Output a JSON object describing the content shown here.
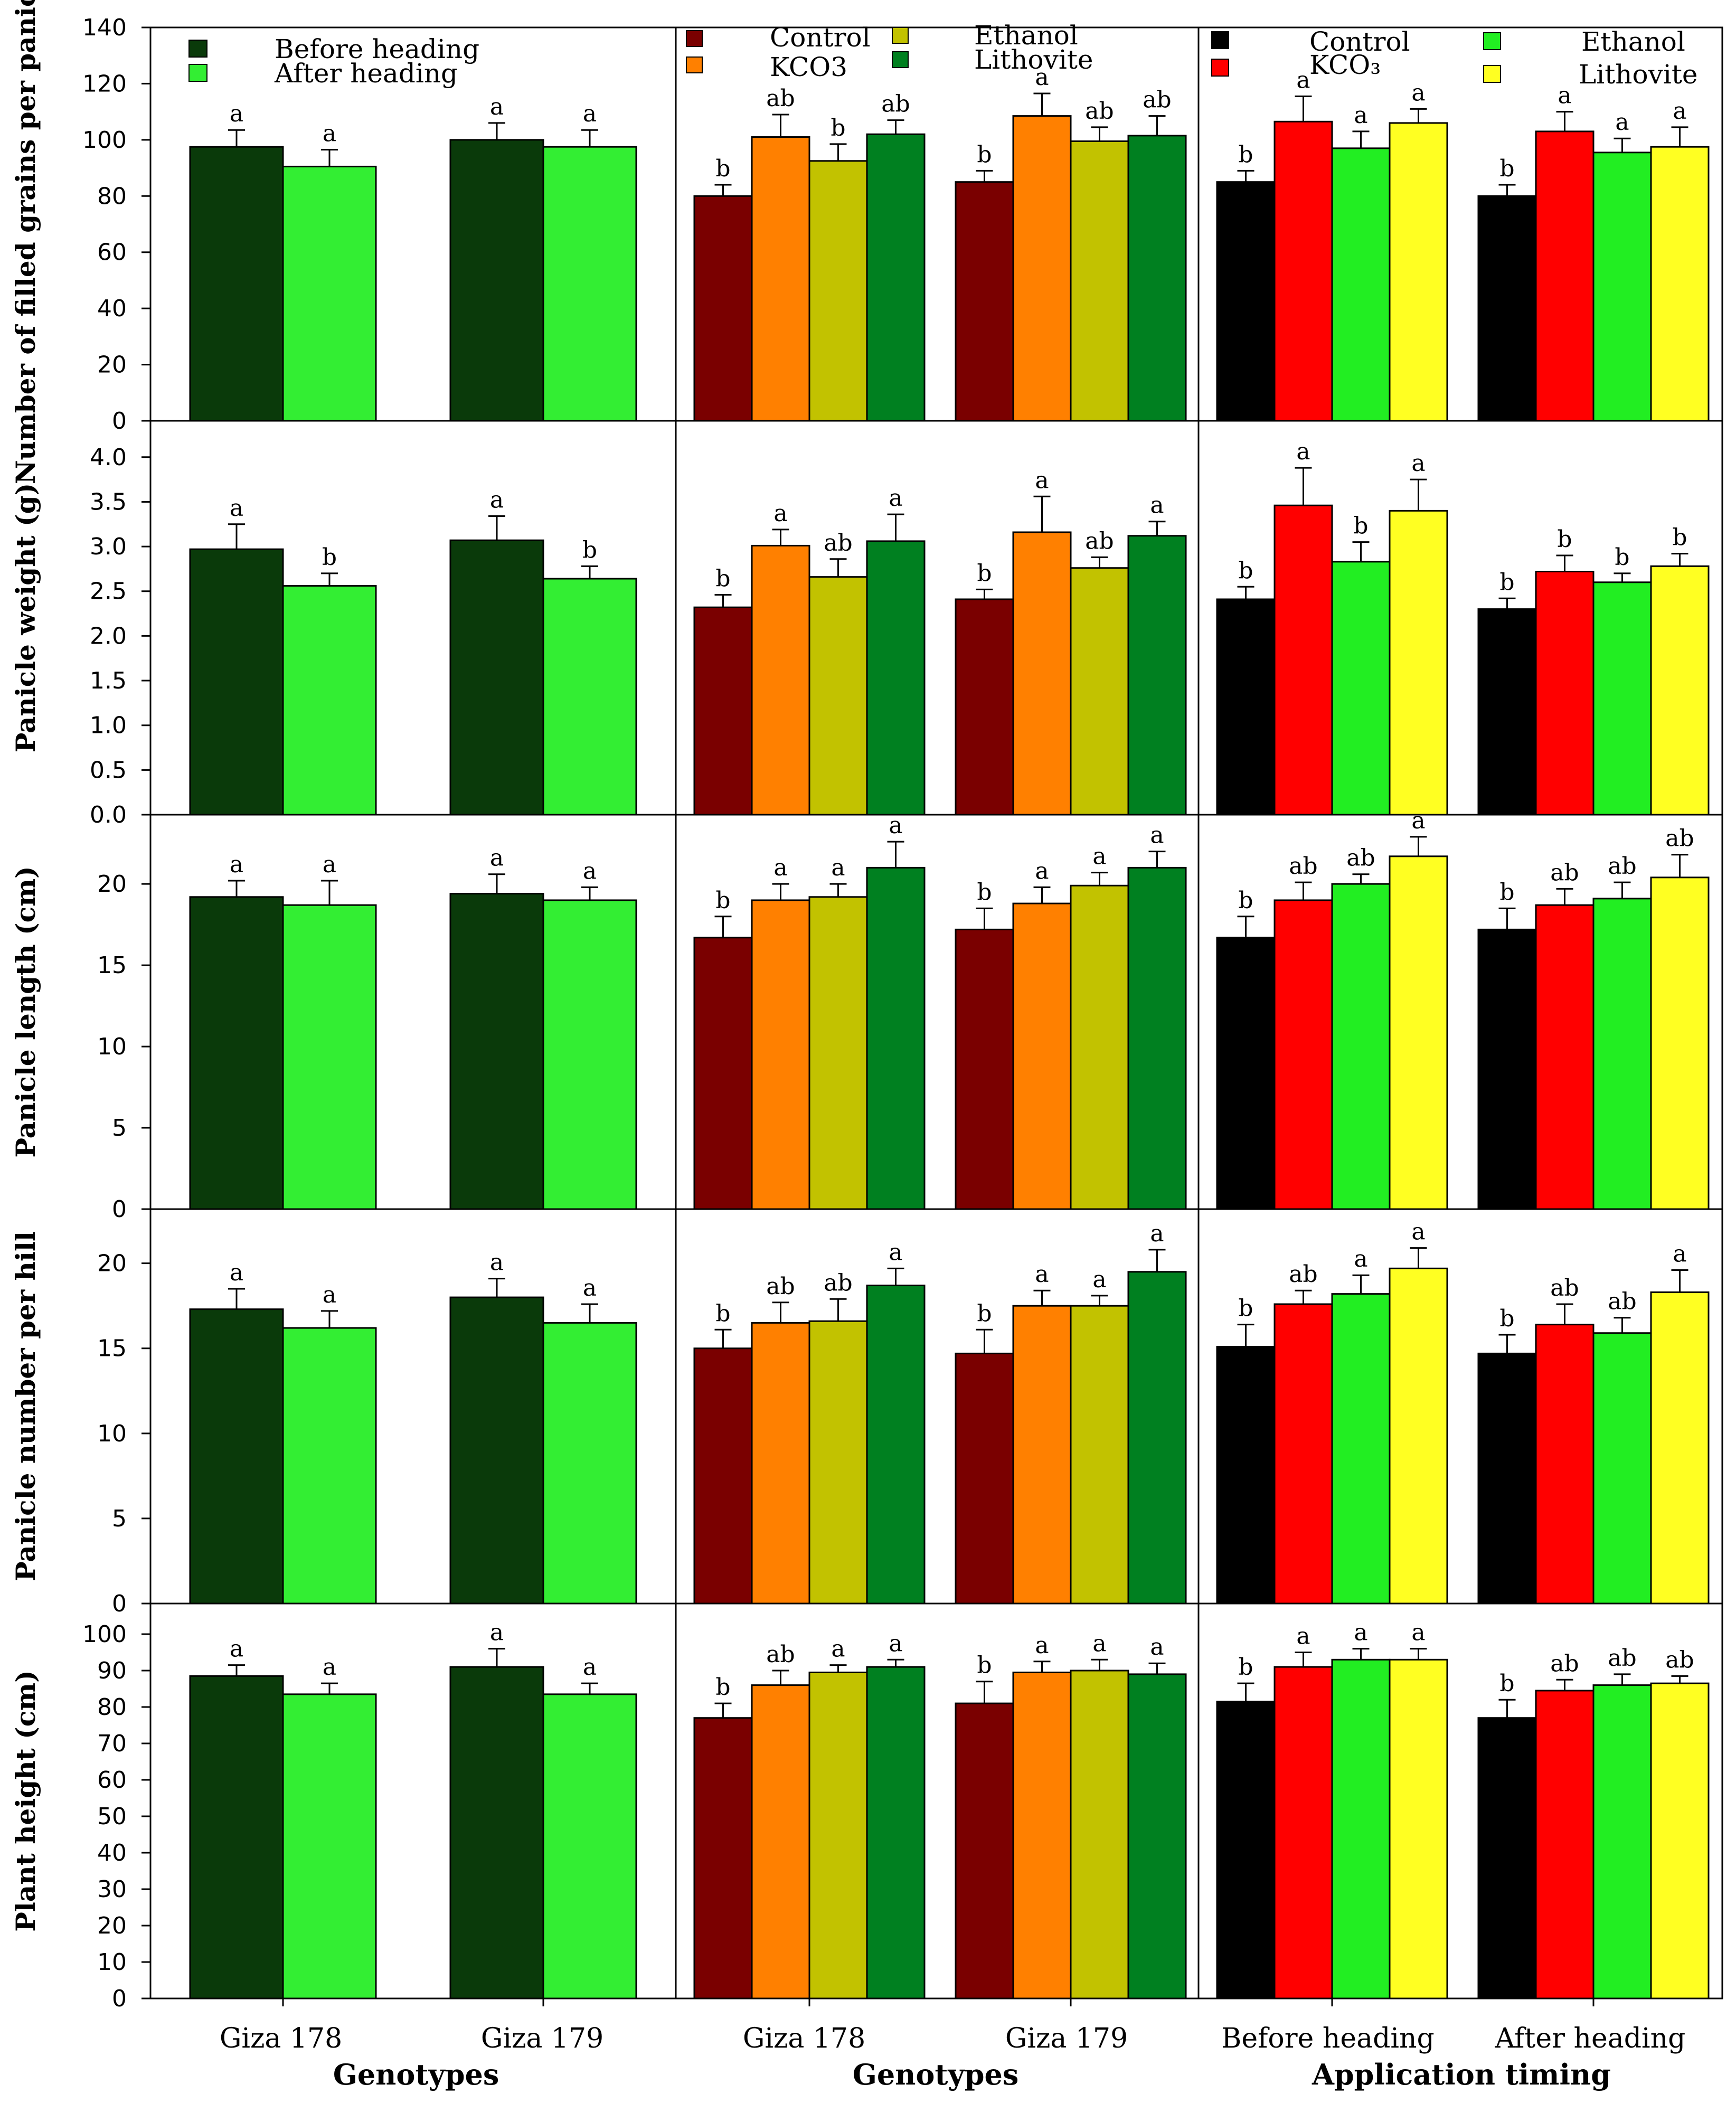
{
  "chart_data": {
    "type": "bar",
    "colors": {
      "before": "#0a3a0a",
      "after": "#33ee33",
      "control_g": "#7a0000",
      "kco3_g": "#ff8000",
      "ethanol_g": "#c2c200",
      "lithovite_g": "#008020",
      "control_t": "#000000",
      "kco3_t": "#ff0000",
      "ethanol_t": "#22ee22",
      "lithovite_t": "#ffff22"
    },
    "rows": [
      {
        "ylabel": "Number of filled grains per panicle",
        "ylim": [
          0,
          140
        ],
        "ticks": [
          "0",
          "20",
          "40",
          "60",
          "80",
          "100",
          "120",
          "140"
        ],
        "tick_values": [
          0,
          20,
          40,
          60,
          80,
          100,
          120,
          140
        ],
        "panels": [
          {
            "groups": [
              {
                "values": [
                  97.5,
                  90.5
                ],
                "errors": [
                  6,
                  6
                ],
                "letters": [
                  "a",
                  "a"
                ]
              },
              {
                "values": [
                  100,
                  97.5
                ],
                "errors": [
                  6,
                  6
                ],
                "letters": [
                  "a",
                  "a"
                ]
              }
            ]
          },
          {
            "groups": [
              {
                "values": [
                  80,
                  101,
                  92.5,
                  102
                ],
                "errors": [
                  4,
                  8,
                  6,
                  5
                ],
                "letters": [
                  "b",
                  "ab",
                  "b",
                  "ab"
                ]
              },
              {
                "values": [
                  85,
                  108.5,
                  99.5,
                  101.5
                ],
                "errors": [
                  4,
                  8,
                  5,
                  7
                ],
                "letters": [
                  "b",
                  "a",
                  "ab",
                  "ab"
                ]
              }
            ]
          },
          {
            "groups": [
              {
                "values": [
                  85,
                  106.5,
                  97,
                  106
                ],
                "errors": [
                  4,
                  9,
                  6,
                  5
                ],
                "letters": [
                  "b",
                  "a",
                  "a",
                  "a"
                ]
              },
              {
                "values": [
                  80,
                  103,
                  95.5,
                  97.5
                ],
                "errors": [
                  4,
                  7,
                  5,
                  7
                ],
                "letters": [
                  "b",
                  "a",
                  "a",
                  "a"
                ]
              }
            ]
          }
        ]
      },
      {
        "ylabel": "Panicle weight (g)",
        "ylim": [
          0,
          4.3
        ],
        "ticks": [
          "0.0",
          "0.5",
          "1.0",
          "1.5",
          "2.0",
          "2.5",
          "3.0",
          "3.5",
          "4.0"
        ],
        "tick_values": [
          0,
          0.5,
          1,
          1.5,
          2,
          2.5,
          3,
          3.5,
          4
        ],
        "panels": [
          {
            "groups": [
              {
                "values": [
                  2.97,
                  2.56
                ],
                "errors": [
                  0.28,
                  0.14
                ],
                "letters": [
                  "a",
                  "b"
                ]
              },
              {
                "values": [
                  3.07,
                  2.64
                ],
                "errors": [
                  0.27,
                  0.14
                ],
                "letters": [
                  "a",
                  "b"
                ]
              }
            ]
          },
          {
            "groups": [
              {
                "values": [
                  2.32,
                  3.01,
                  2.66,
                  3.06
                ],
                "errors": [
                  0.14,
                  0.18,
                  0.2,
                  0.3
                ],
                "letters": [
                  "b",
                  "a",
                  "ab",
                  "a"
                ]
              },
              {
                "values": [
                  2.41,
                  3.16,
                  2.76,
                  3.12
                ],
                "errors": [
                  0.11,
                  0.4,
                  0.12,
                  0.16
                ],
                "letters": [
                  "b",
                  "a",
                  "ab",
                  "a"
                ]
              }
            ]
          },
          {
            "groups": [
              {
                "values": [
                  2.41,
                  3.46,
                  2.83,
                  3.4
                ],
                "errors": [
                  0.14,
                  0.42,
                  0.22,
                  0.35
                ],
                "letters": [
                  "b",
                  "a",
                  "b",
                  "a"
                ]
              },
              {
                "values": [
                  2.3,
                  2.72,
                  2.6,
                  2.78
                ],
                "errors": [
                  0.12,
                  0.18,
                  0.1,
                  0.14
                ],
                "letters": [
                  "b",
                  "b",
                  "b",
                  "b"
                ]
              }
            ]
          }
        ]
      },
      {
        "ylabel": "Panicle length (cm)",
        "ylim": [
          0,
          24
        ],
        "ticks": [
          "0",
          "5",
          "10",
          "15",
          "20"
        ],
        "tick_values": [
          0,
          5,
          10,
          15,
          20
        ],
        "panels": [
          {
            "groups": [
              {
                "values": [
                  19.2,
                  18.7
                ],
                "errors": [
                  1,
                  1.5
                ],
                "letters": [
                  "a",
                  "a"
                ]
              },
              {
                "values": [
                  19.4,
                  19
                ],
                "errors": [
                  1.2,
                  0.8
                ],
                "letters": [
                  "a",
                  "a"
                ]
              }
            ]
          },
          {
            "groups": [
              {
                "values": [
                  16.7,
                  19,
                  19.2,
                  21
                ],
                "errors": [
                  1.3,
                  1,
                  0.8,
                  1.6
                ],
                "letters": [
                  "b",
                  "a",
                  "a",
                  "a"
                ]
              },
              {
                "values": [
                  17.2,
                  18.8,
                  19.9,
                  21
                ],
                "errors": [
                  1.3,
                  1,
                  0.8,
                  1
                ],
                "letters": [
                  "b",
                  "a",
                  "a",
                  "a"
                ]
              }
            ]
          },
          {
            "groups": [
              {
                "values": [
                  16.7,
                  19,
                  20,
                  21.7
                ],
                "errors": [
                  1.3,
                  1.1,
                  0.6,
                  1.2
                ],
                "letters": [
                  "b",
                  "ab",
                  "ab",
                  "a"
                ]
              },
              {
                "values": [
                  17.2,
                  18.7,
                  19.1,
                  20.4
                ],
                "errors": [
                  1.3,
                  1,
                  1,
                  1.4
                ],
                "letters": [
                  "b",
                  "ab",
                  "ab",
                  "ab"
                ]
              }
            ]
          }
        ]
      },
      {
        "ylabel": "Panicle number per hill",
        "ylim": [
          0,
          23
        ],
        "ticks": [
          "0",
          "5",
          "10",
          "15",
          "20"
        ],
        "tick_values": [
          0,
          5,
          10,
          15,
          20
        ],
        "panels": [
          {
            "groups": [
              {
                "values": [
                  17.3,
                  16.2
                ],
                "errors": [
                  1.2,
                  1
                ],
                "letters": [
                  "a",
                  "a"
                ]
              },
              {
                "values": [
                  18,
                  16.5
                ],
                "errors": [
                  1.1,
                  1.1
                ],
                "letters": [
                  "a",
                  "a"
                ]
              }
            ]
          },
          {
            "groups": [
              {
                "values": [
                  15,
                  16.5,
                  16.6,
                  18.7
                ],
                "errors": [
                  1.1,
                  1.2,
                  1.3,
                  1
                ],
                "letters": [
                  "b",
                  "ab",
                  "ab",
                  "a"
                ]
              },
              {
                "values": [
                  14.7,
                  17.5,
                  17.5,
                  19.5
                ],
                "errors": [
                  1.4,
                  0.9,
                  0.6,
                  1.3
                ],
                "letters": [
                  "b",
                  "a",
                  "a",
                  "a"
                ]
              }
            ]
          },
          {
            "groups": [
              {
                "values": [
                  15.1,
                  17.6,
                  18.2,
                  19.7
                ],
                "errors": [
                  1.3,
                  0.8,
                  1.1,
                  1.2
                ],
                "letters": [
                  "b",
                  "ab",
                  "a",
                  "a"
                ]
              },
              {
                "values": [
                  14.7,
                  16.4,
                  15.9,
                  18.3
                ],
                "errors": [
                  1.1,
                  1.2,
                  0.9,
                  1.3
                ],
                "letters": [
                  "b",
                  "ab",
                  "ab",
                  "a"
                ]
              }
            ]
          }
        ]
      },
      {
        "ylabel": "Plant height (cm)",
        "ylim": [
          0,
          100
        ],
        "ticks": [
          "0",
          "10",
          "20",
          "30",
          "40",
          "50",
          "60",
          "70",
          "80",
          "90",
          "100"
        ],
        "tick_values": [
          0,
          10,
          20,
          30,
          40,
          50,
          60,
          70,
          80,
          90,
          100
        ],
        "panels": [
          {
            "groups": [
              {
                "values": [
                  88.5,
                  83.5
                ],
                "errors": [
                  3,
                  3
                ],
                "letters": [
                  "a",
                  "a"
                ]
              },
              {
                "values": [
                  91,
                  83.5
                ],
                "errors": [
                  5,
                  3
                ],
                "letters": [
                  "a",
                  "a"
                ]
              }
            ]
          },
          {
            "groups": [
              {
                "values": [
                  77,
                  86,
                  89.5,
                  91
                ],
                "errors": [
                  4,
                  4,
                  2,
                  2
                ],
                "letters": [
                  "b",
                  "ab",
                  "a",
                  "a"
                ]
              },
              {
                "values": [
                  81,
                  89.5,
                  90,
                  89
                ],
                "errors": [
                  6,
                  3,
                  3,
                  3
                ],
                "letters": [
                  "b",
                  "a",
                  "a",
                  "a"
                ]
              }
            ]
          },
          {
            "groups": [
              {
                "values": [
                  81.5,
                  91,
                  93,
                  93
                ],
                "errors": [
                  5,
                  4,
                  3,
                  3
                ],
                "letters": [
                  "b",
                  "a",
                  "a",
                  "a"
                ]
              },
              {
                "values": [
                  77,
                  84.5,
                  86,
                  86.5
                ],
                "errors": [
                  5,
                  3,
                  3,
                  2
                ],
                "letters": [
                  "b",
                  "ab",
                  "ab",
                  "ab"
                ]
              }
            ]
          }
        ]
      }
    ],
    "columns": [
      {
        "xticks": [
          "Giza 178",
          "Giza 179"
        ],
        "xtitle": "Genotypes",
        "legend": [
          "Before heading",
          "After heading"
        ]
      },
      {
        "xticks": [
          "Giza 178",
          "Giza 179"
        ],
        "xtitle": "Genotypes",
        "legend": [
          "Control",
          "KCO3",
          "Ethanol",
          "Lithovite"
        ]
      },
      {
        "xticks": [
          "Before heading",
          "After heading"
        ],
        "xtitle": "Application timing",
        "legend": [
          "Control",
          "KCO₃",
          "Ethanol",
          "Lithovite"
        ]
      }
    ]
  }
}
